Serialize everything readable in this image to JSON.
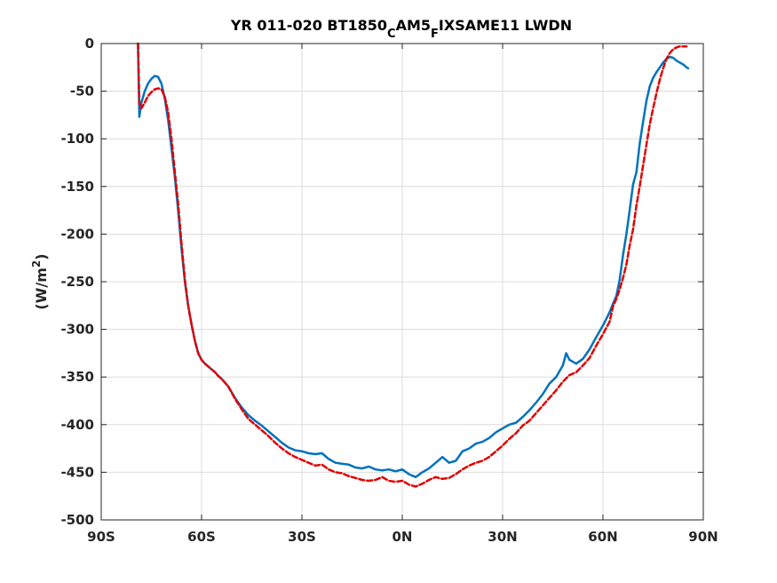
{
  "chart_data": {
    "type": "line",
    "title": {
      "prefix": "YR 011-020 BT1850",
      "sub1": "C",
      "mid": "AM5",
      "sub2": "F",
      "suffix": "IXSAME11 LWDN"
    },
    "ylabel": {
      "text": "(W/m",
      "sup": "2",
      "close": ")"
    },
    "xlabel": "",
    "xlim": [
      -90,
      90
    ],
    "ylim": [
      -500,
      0
    ],
    "xticks": [
      -90,
      -60,
      -30,
      0,
      30,
      60,
      90
    ],
    "xtick_labels": [
      "90S",
      "60S",
      "30S",
      "0N",
      "30N",
      "60N",
      "90N"
    ],
    "yticks": [
      0,
      -50,
      -100,
      -150,
      -200,
      -250,
      -300,
      -350,
      -400,
      -450,
      -500
    ],
    "ytick_labels": [
      "0",
      "-50",
      "-100",
      "-150",
      "-200",
      "-250",
      "-300",
      "-350",
      "-400",
      "-450",
      "-500"
    ],
    "grid": true,
    "series": [
      {
        "color": "#0072BD",
        "style": "solid",
        "x": [
          -79,
          -78.6,
          -78,
          -77,
          -76,
          -75,
          -74,
          -73,
          -72,
          -71,
          -70,
          -69,
          -68,
          -67,
          -66,
          -65,
          -64,
          -63,
          -62,
          -61,
          -60,
          -59,
          -58,
          -57,
          -56,
          -55,
          -54,
          -52,
          -50,
          -48,
          -46,
          -44,
          -42,
          -40,
          -38,
          -36,
          -34,
          -32,
          -30,
          -28,
          -26,
          -24,
          -22,
          -20,
          -18,
          -16,
          -14,
          -12,
          -10,
          -8,
          -6,
          -4,
          -2,
          0,
          2,
          4,
          6,
          8,
          10,
          12,
          14,
          16,
          18,
          20,
          22,
          24,
          26,
          28,
          30,
          32,
          34,
          36,
          38,
          40,
          42,
          44,
          46,
          48,
          49,
          50,
          52,
          54,
          56,
          58,
          60,
          62,
          63,
          64,
          65,
          66,
          67,
          68,
          69,
          70,
          71,
          72,
          73,
          74,
          75,
          76,
          77,
          78,
          79,
          80,
          81,
          82,
          83,
          84,
          85,
          85.5
        ],
        "y": [
          0,
          -77,
          -62,
          -50,
          -42,
          -37,
          -34,
          -35,
          -42,
          -58,
          -80,
          -110,
          -140,
          -175,
          -215,
          -250,
          -275,
          -295,
          -312,
          -325,
          -332,
          -336,
          -339,
          -342,
          -345,
          -349,
          -352,
          -360,
          -372,
          -382,
          -390,
          -396,
          -401,
          -407,
          -413,
          -419,
          -424,
          -427,
          -428,
          -430,
          -431,
          -430,
          -436,
          -440,
          -441,
          -442,
          -445,
          -446,
          -444,
          -447,
          -448,
          -447,
          -449,
          -447,
          -452,
          -455,
          -450,
          -446,
          -440,
          -434,
          -440,
          -438,
          -428,
          -425,
          -420,
          -418,
          -414,
          -408,
          -404,
          -400,
          -398,
          -392,
          -385,
          -377,
          -368,
          -357,
          -350,
          -338,
          -325,
          -332,
          -336,
          -331,
          -321,
          -308,
          -296,
          -282,
          -273,
          -265,
          -248,
          -222,
          -200,
          -175,
          -148,
          -135,
          -105,
          -82,
          -60,
          -45,
          -36,
          -30,
          -25,
          -20,
          -16,
          -14,
          -15,
          -18,
          -20,
          -22,
          -25,
          -26
        ]
      },
      {
        "color": "#E00000",
        "style": "dashed",
        "x": [
          -79,
          -78.6,
          -78,
          -77,
          -76,
          -75,
          -74,
          -73,
          -72,
          -71,
          -70,
          -69,
          -68,
          -67,
          -66,
          -65,
          -64,
          -63,
          -62,
          -61,
          -60,
          -59,
          -58,
          -57,
          -56,
          -55,
          -54,
          -52,
          -50,
          -48,
          -46,
          -44,
          -42,
          -40,
          -38,
          -36,
          -34,
          -32,
          -30,
          -28,
          -26,
          -24,
          -22,
          -20,
          -18,
          -16,
          -14,
          -12,
          -10,
          -8,
          -6,
          -4,
          -2,
          0,
          2,
          4,
          6,
          8,
          10,
          12,
          14,
          16,
          18,
          20,
          22,
          24,
          26,
          28,
          30,
          32,
          34,
          36,
          38,
          40,
          42,
          44,
          46,
          48,
          50,
          52,
          54,
          56,
          58,
          60,
          62,
          63,
          64,
          65,
          66,
          67,
          68,
          69,
          70,
          71,
          72,
          73,
          74,
          75,
          76,
          77,
          78,
          79,
          80,
          81,
          82,
          83,
          84,
          85
        ],
        "y": [
          0,
          -63,
          -68,
          -62,
          -55,
          -51,
          -48,
          -47,
          -48,
          -56,
          -72,
          -100,
          -135,
          -168,
          -210,
          -248,
          -275,
          -295,
          -312,
          -325,
          -332,
          -336,
          -339,
          -342,
          -345,
          -349,
          -352,
          -360,
          -373,
          -384,
          -394,
          -400,
          -406,
          -412,
          -419,
          -425,
          -430,
          -434,
          -437,
          -440,
          -443,
          -442,
          -447,
          -450,
          -451,
          -454,
          -456,
          -458,
          -459,
          -458,
          -455,
          -459,
          -460,
          -459,
          -463,
          -465,
          -462,
          -458,
          -455,
          -457,
          -456,
          -452,
          -447,
          -443,
          -440,
          -438,
          -434,
          -428,
          -422,
          -415,
          -409,
          -401,
          -396,
          -388,
          -380,
          -372,
          -364,
          -355,
          -348,
          -345,
          -338,
          -330,
          -317,
          -305,
          -292,
          -276,
          -268,
          -258,
          -246,
          -232,
          -212,
          -195,
          -170,
          -150,
          -128,
          -106,
          -85,
          -68,
          -52,
          -38,
          -26,
          -16,
          -10,
          -6,
          -4,
          -3,
          -3,
          -3
        ]
      }
    ]
  }
}
